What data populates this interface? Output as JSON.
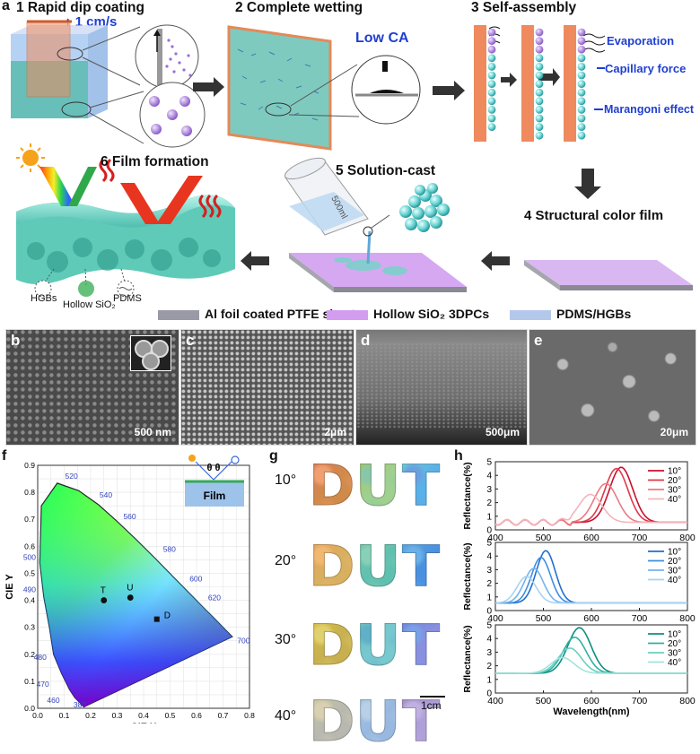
{
  "panel_letters": {
    "a": "a",
    "b": "b",
    "c": "c",
    "d": "d",
    "e": "e",
    "f": "f",
    "g": "g",
    "h": "h"
  },
  "panel_a": {
    "step1": "1 Rapid dip coating",
    "speed": "1 cm/s",
    "step2": "2 Complete wetting",
    "low_ca": "Low CA",
    "step3": "3 Self-assembly",
    "evaporation": "Evaporation",
    "capillary": "Capillary force",
    "marangoni": "Marangoni effect",
    "step4": "4 Structural color film",
    "step5": "5 Solution-cast",
    "beaker_label": "500ml",
    "step6": "6 Film formation",
    "hgbs": "HGBs",
    "hollow_sio2": "Hollow SiO₂",
    "pdms": "PDMS"
  },
  "legend": [
    {
      "label": "Al foil coated PTFE sheet",
      "color": "#9a9aa6"
    },
    {
      "label": "Hollow SiO₂ 3DPCs",
      "color": "#d39cf0"
    },
    {
      "label": "PDMS/HGBs",
      "color": "#b4c8ec"
    }
  ],
  "sem": [
    {
      "tag": "b",
      "scale": "500 nm"
    },
    {
      "tag": "c",
      "scale": "2μm"
    },
    {
      "tag": "d",
      "scale": "500μm"
    },
    {
      "tag": "e",
      "scale": "20μm"
    }
  ],
  "panel_f": {
    "xlabel": "CIE X",
    "ylabel": "CIE Y",
    "film": "Film",
    "theta": "θ θ",
    "x_ticks": [
      "0.0",
      "0.1",
      "0.2",
      "0.3",
      "0.4",
      "0.5",
      "0.6",
      "0.7",
      "0.8"
    ],
    "y_ticks": [
      "0.0",
      "0.1",
      "0.2",
      "0.3",
      "0.4",
      "0.5",
      "0.6",
      "0.7",
      "0.8",
      "0.9"
    ],
    "wavelength_labels": [
      "520",
      "540",
      "560",
      "580",
      "600",
      "620",
      "700",
      "500",
      "490",
      "480",
      "470",
      "460",
      "380"
    ],
    "points": [
      {
        "label": "T",
        "x": 0.25,
        "y": 0.4
      },
      {
        "label": "U",
        "x": 0.35,
        "y": 0.41
      },
      {
        "label": "D",
        "x": 0.45,
        "y": 0.33
      }
    ]
  },
  "panel_g": {
    "angles": [
      "10°",
      "20°",
      "30°",
      "40°"
    ],
    "letters": [
      "D",
      "U",
      "T"
    ],
    "scale": "1cm"
  },
  "chart_data": [
    {
      "type": "line",
      "xlabel": "Wavelength(nm)",
      "ylabel": "Reflectance(%)",
      "xlim": [
        400,
        800
      ],
      "ylim": [
        0,
        5
      ],
      "x_ticks": [
        "400",
        "500",
        "600",
        "700",
        "800"
      ],
      "y_ticks": [
        "0",
        "1",
        "2",
        "3",
        "4",
        "5"
      ],
      "series": [
        {
          "name": "10°",
          "peak_x": 662,
          "peak_y": 4.6,
          "color": "#c8102e"
        },
        {
          "name": "20°",
          "peak_x": 652,
          "peak_y": 4.5,
          "color": "#e03a4a"
        },
        {
          "name": "30°",
          "peak_x": 630,
          "peak_y": 3.4,
          "color": "#ea7b85"
        },
        {
          "name": "40°",
          "peak_x": 598,
          "peak_y": 2.6,
          "color": "#f3b5bb"
        }
      ]
    },
    {
      "type": "line",
      "xlabel": "Wavelength(nm)",
      "ylabel": "Reflectance(%)",
      "xlim": [
        400,
        800
      ],
      "ylim": [
        0,
        5
      ],
      "x_ticks": [
        "400",
        "500",
        "600",
        "700",
        "800"
      ],
      "y_ticks": [
        "0",
        "1",
        "2",
        "3",
        "4",
        "5"
      ],
      "series": [
        {
          "name": "10°",
          "peak_x": 505,
          "peak_y": 4.4,
          "color": "#1f6fd0"
        },
        {
          "name": "20°",
          "peak_x": 495,
          "peak_y": 3.9,
          "color": "#3d8fe0"
        },
        {
          "name": "30°",
          "peak_x": 480,
          "peak_y": 3.1,
          "color": "#74b3ec"
        },
        {
          "name": "40°",
          "peak_x": 465,
          "peak_y": 2.5,
          "color": "#a9d2f4"
        }
      ]
    },
    {
      "type": "line",
      "xlabel": "Wavelength(nm)",
      "ylabel": "Reflectance(%)",
      "xlim": [
        400,
        800
      ],
      "ylim": [
        0,
        5
      ],
      "x_ticks": [
        "400",
        "500",
        "600",
        "700",
        "800"
      ],
      "y_ticks": [
        "0",
        "1",
        "2",
        "3",
        "4",
        "5"
      ],
      "series": [
        {
          "name": "10°",
          "peak_x": 575,
          "peak_y": 4.8,
          "color": "#0e8f7e"
        },
        {
          "name": "20°",
          "peak_x": 565,
          "peak_y": 4.1,
          "color": "#2fb1a0"
        },
        {
          "name": "30°",
          "peak_x": 555,
          "peak_y": 3.3,
          "color": "#69cfc2"
        },
        {
          "name": "40°",
          "peak_x": 540,
          "peak_y": 2.6,
          "color": "#a5e3db"
        }
      ]
    }
  ]
}
